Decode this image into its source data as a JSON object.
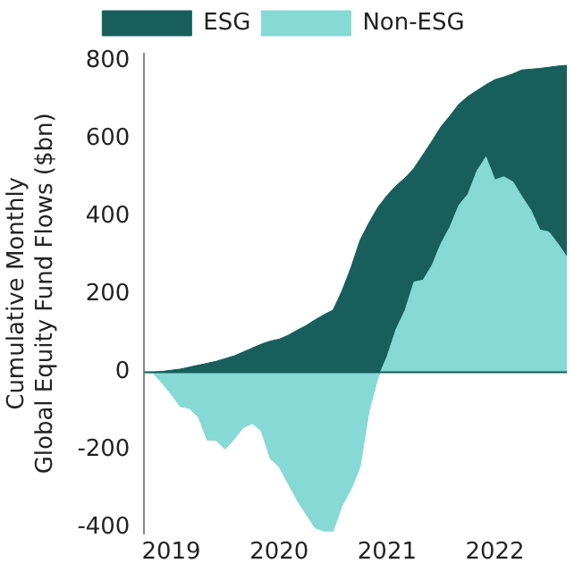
{
  "chart_data": {
    "type": "area",
    "ylabel": "Cumulative Monthly\nGlobal Equity Fund Flows ($bn)",
    "x": [
      "2018-10",
      "2018-11",
      "2018-12",
      "2019-01",
      "2019-02",
      "2019-03",
      "2019-04",
      "2019-05",
      "2019-06",
      "2019-07",
      "2019-08",
      "2019-09",
      "2019-10",
      "2019-11",
      "2019-12",
      "2020-01",
      "2020-02",
      "2020-03",
      "2020-04",
      "2020-05",
      "2020-06",
      "2020-07",
      "2020-08",
      "2020-09",
      "2020-10",
      "2020-11",
      "2020-12",
      "2021-01",
      "2021-02",
      "2021-03",
      "2021-04",
      "2021-05",
      "2021-06",
      "2021-07",
      "2021-08",
      "2021-09",
      "2021-10",
      "2021-11",
      "2021-12",
      "2022-01",
      "2022-02",
      "2022-03",
      "2022-04",
      "2022-05",
      "2022-06",
      "2022-07",
      "2022-08",
      "2022-09"
    ],
    "series": [
      {
        "name": "ESG",
        "color": "#175e5c",
        "values": [
          0,
          0,
          2,
          5,
          8,
          13,
          18,
          23,
          28,
          35,
          42,
          52,
          62,
          72,
          80,
          85,
          95,
          108,
          120,
          135,
          148,
          160,
          210,
          270,
          340,
          385,
          425,
          455,
          480,
          500,
          525,
          560,
          595,
          632,
          660,
          690,
          710,
          725,
          740,
          753,
          760,
          768,
          778,
          780,
          782,
          785,
          788,
          790
        ]
      },
      {
        "name": "Non-ESG",
        "color": "#86d9d4",
        "values": [
          0,
          -3,
          -29,
          -57,
          -89,
          -93,
          -115,
          -175,
          -176,
          -198,
          -172,
          -143,
          -132,
          -151,
          -222,
          -244,
          -287,
          -330,
          -366,
          -401,
          -409,
          -409,
          -344,
          -301,
          -244,
          -100,
          -14,
          40,
          110,
          159,
          232,
          237,
          275,
          331,
          374,
          430,
          458,
          518,
          554,
          495,
          503,
          490,
          452,
          417,
          366,
          361,
          331,
          297
        ]
      }
    ],
    "xlim": [
      "2018-10",
      "2022-09"
    ],
    "xticks": [
      "2019",
      "2020",
      "2021",
      "2022"
    ],
    "ylim": [
      -415,
      820
    ],
    "yticks": [
      -400,
      -200,
      0,
      200,
      400,
      600,
      800
    ],
    "ref_lines": [
      {
        "axis": "y",
        "value": 0,
        "color": "#175e5c"
      }
    ],
    "grid": false,
    "legend": "top"
  }
}
